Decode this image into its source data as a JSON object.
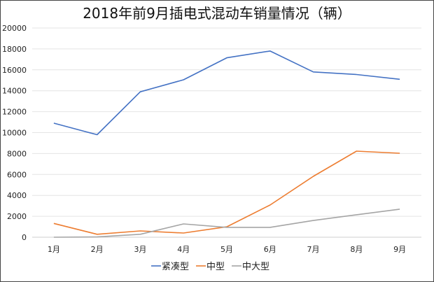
{
  "chart_data": {
    "type": "line",
    "title": "2018年前9月插电式混动车销量情况（辆）",
    "xlabel": "",
    "ylabel": "",
    "categories": [
      "1月",
      "2月",
      "3月",
      "4月",
      "5月",
      "6月",
      "7月",
      "8月",
      "9月"
    ],
    "ylim": [
      0,
      20000
    ],
    "yticks": [
      0,
      2000,
      4000,
      6000,
      8000,
      10000,
      12000,
      14000,
      16000,
      18000,
      20000
    ],
    "grid": true,
    "legend_position": "bottom",
    "series": [
      {
        "name": "紧凑型",
        "color": "#4472c4",
        "values": [
          10900,
          9800,
          13900,
          15050,
          17150,
          17800,
          15800,
          15550,
          15100
        ]
      },
      {
        "name": "中型",
        "color": "#ed7d31",
        "values": [
          1320,
          280,
          600,
          400,
          1000,
          3080,
          5820,
          8230,
          8030
        ]
      },
      {
        "name": "中大型",
        "color": "#a5a5a5",
        "values": [
          0,
          30,
          280,
          1270,
          940,
          940,
          1600,
          2150,
          2680
        ]
      }
    ]
  }
}
